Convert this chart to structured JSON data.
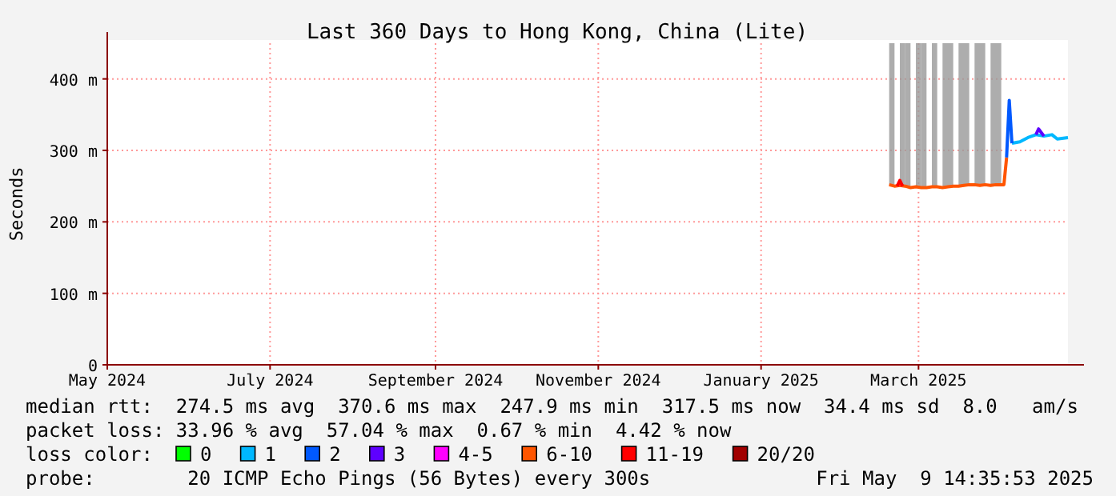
{
  "chart_data": {
    "type": "line",
    "title": "Last 360 Days to Hong Kong, China (Lite)",
    "ylabel": "Seconds",
    "legend_title": "loss color:",
    "legend": "bottom",
    "grid": true,
    "xlim": [
      "2024-05-01",
      "2025-04-26"
    ],
    "xticks": [
      {
        "value": "2024-05-01",
        "label": "May 2024"
      },
      {
        "value": "2024-07-01",
        "label": "July 2024"
      },
      {
        "value": "2024-09-01",
        "label": "September 2024"
      },
      {
        "value": "2024-11-01",
        "label": "November 2024"
      },
      {
        "value": "2025-01-01",
        "label": "January 2025"
      },
      {
        "value": "2025-03-01",
        "label": "March 2025"
      }
    ],
    "ylim": [
      0,
      450
    ],
    "yticks": [
      0,
      {
        "value": 100,
        "label": "100 m"
      },
      {
        "value": 200,
        "label": "200 m"
      },
      {
        "value": 300,
        "label": "300 m"
      },
      {
        "value": 400,
        "label": "400 m"
      }
    ],
    "series": [
      {
        "name": "0",
        "color": "#00ff00"
      },
      {
        "name": "1",
        "color": "#00b8ff",
        "x": [
          "2025-04-05",
          "2025-04-08",
          "2025-04-11",
          "2025-04-14",
          "2025-04-17",
          "2025-04-20",
          "2025-04-22",
          "2025-04-26"
        ],
        "values": [
          310,
          312,
          318,
          322,
          320,
          322,
          316,
          318
        ]
      },
      {
        "name": "2",
        "color": "#0059ff",
        "x": [
          "2025-04-03",
          "2025-04-04",
          "2025-04-05"
        ],
        "values": [
          290,
          370,
          310
        ]
      },
      {
        "name": "3",
        "color": "#5e00ff",
        "x": [
          "2025-04-14",
          "2025-04-15",
          "2025-04-17"
        ],
        "values": [
          322,
          330,
          320
        ]
      },
      {
        "name": "4-5",
        "color": "#ff00ff"
      },
      {
        "name": "6-10",
        "color": "#ff5500",
        "x": [
          "2025-02-18",
          "2025-02-20",
          "2025-02-22",
          "2025-02-24",
          "2025-02-26",
          "2025-02-28",
          "2025-03-02",
          "2025-03-04",
          "2025-03-06",
          "2025-03-08",
          "2025-03-10",
          "2025-03-12",
          "2025-03-14",
          "2025-03-16",
          "2025-03-18",
          "2025-03-20",
          "2025-03-22",
          "2025-03-24",
          "2025-03-26",
          "2025-03-28",
          "2025-03-30",
          "2025-04-01",
          "2025-04-02",
          "2025-04-03"
        ],
        "values": [
          252,
          250,
          251,
          250,
          248,
          249,
          248,
          248,
          249,
          249,
          248,
          249,
          250,
          250,
          251,
          252,
          252,
          251,
          252,
          251,
          252,
          252,
          252,
          290
        ],
        "lower": [
          252,
          null,
          251,
          250,
          null,
          249,
          248,
          null,
          249,
          null,
          248,
          249,
          null,
          250,
          251,
          null,
          252,
          251,
          null,
          251,
          252,
          null,
          null,
          null
        ],
        "upper": [
          450,
          null,
          450,
          450,
          null,
          450,
          450,
          null,
          450,
          null,
          450,
          450,
          null,
          450,
          450,
          null,
          450,
          450,
          null,
          450,
          450,
          null,
          null,
          null
        ]
      },
      {
        "name": "11-19",
        "color": "#ff0000",
        "x": [
          "2025-02-21",
          "2025-02-22",
          "2025-02-23"
        ],
        "values": [
          250,
          258,
          250
        ]
      },
      {
        "name": "20/20",
        "color": "#a10000"
      }
    ],
    "annotations": [
      "median rtt:  274.5 ms avg  370.6 ms max  247.9 ms min  317.5 ms now  34.4 ms sd  8.0   am/s",
      "packet loss: 33.96 % avg  57.04 % max  0.67 % min  4.42 % now",
      "probe:        20 ICMP Echo Pings (56 Bytes) every 300s",
      "Fri May  9 14:35:53 2025"
    ]
  }
}
